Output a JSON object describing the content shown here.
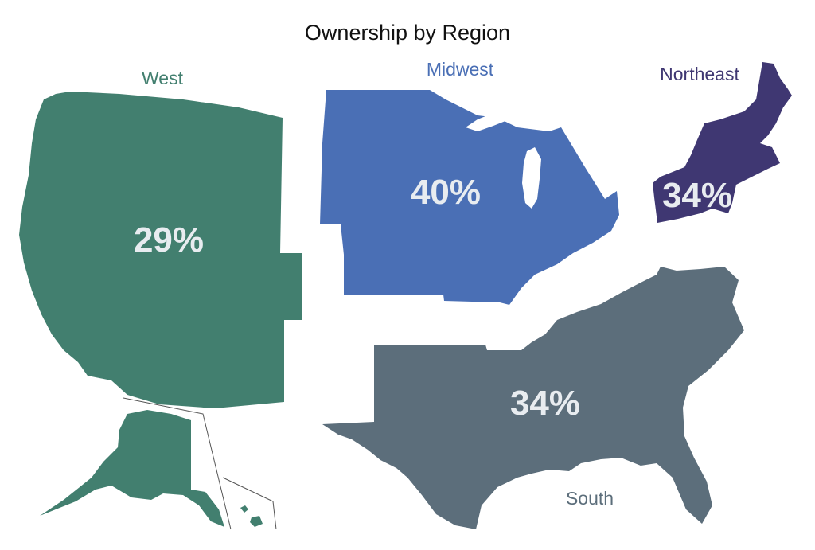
{
  "title": "Ownership by Region",
  "regions": [
    {
      "id": "west",
      "name": "West",
      "value": "29%",
      "color": "#427f6f"
    },
    {
      "id": "midwest",
      "name": "Midwest",
      "value": "40%",
      "color": "#4a6fb5"
    },
    {
      "id": "northeast",
      "name": "Northeast",
      "value": "34%",
      "color": "#3f3772"
    },
    {
      "id": "south",
      "name": "South",
      "value": "34%",
      "color": "#5c6e7b"
    }
  ]
}
